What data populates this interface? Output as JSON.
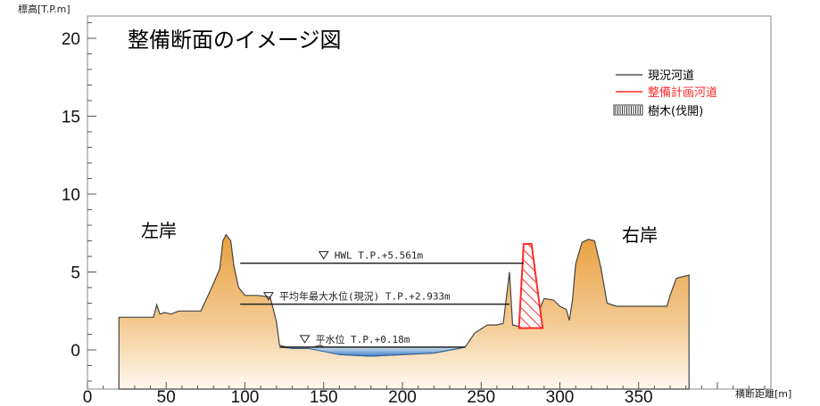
{
  "title": "整備断面のイメージ図",
  "y_axis_label": "標高[T.P.m]",
  "x_axis_label": "横断距離[m]",
  "x_ticks": [
    "0",
    "50",
    "100",
    "150",
    "200",
    "250",
    "300",
    "350"
  ],
  "y_ticks": [
    "0",
    "5",
    "10",
    "15",
    "20"
  ],
  "left_bank_label": "左岸",
  "right_bank_label": "右岸",
  "legend": {
    "existing": "現況河道",
    "planned": "整備計画河道",
    "trees": "樹木(伐開)"
  },
  "water_levels": [
    {
      "label": "HWL  T.P.+5.561m",
      "elevation": 5.561,
      "x_from": 97,
      "x_to": 277
    },
    {
      "label": "平均年最大水位(現況) T.P.+2.933m",
      "elevation": 2.933,
      "x_from": 97,
      "x_to": 268
    },
    {
      "label": "平水位  T.P.+0.18m",
      "elevation": 0.18,
      "x_from": 122,
      "x_to": 240
    }
  ],
  "colors": {
    "existing": "#555555",
    "planned": "#ff2a2a",
    "terrain_top": "#e8a040",
    "terrain_bottom": "#fff4e6",
    "water": "#5b9bd5"
  },
  "chart_data": {
    "type": "area",
    "xlim": [
      0,
      430
    ],
    "ylim": [
      -2,
      21
    ],
    "xlabel": "横断距離[m]",
    "ylabel": "標高[T.P.m]",
    "ground_profile": [
      [
        20,
        2.1
      ],
      [
        42,
        2.1
      ],
      [
        44,
        2.9
      ],
      [
        46,
        2.3
      ],
      [
        49,
        2.4
      ],
      [
        53,
        2.3
      ],
      [
        58,
        2.5
      ],
      [
        72,
        2.5
      ],
      [
        78,
        3.8
      ],
      [
        84,
        5.2
      ],
      [
        86,
        7.0
      ],
      [
        88,
        7.4
      ],
      [
        91,
        7.0
      ],
      [
        93,
        5.4
      ],
      [
        96,
        4.0
      ],
      [
        100,
        3.5
      ],
      [
        108,
        3.5
      ],
      [
        116,
        3.4
      ],
      [
        118,
        2.6
      ],
      [
        120,
        1.8
      ],
      [
        122,
        0.3
      ],
      [
        130,
        0.1
      ],
      [
        140,
        0.1
      ],
      [
        148,
        0.3
      ],
      [
        160,
        -0.3
      ],
      [
        180,
        -0.4
      ],
      [
        200,
        -0.3
      ],
      [
        220,
        -0.2
      ],
      [
        236,
        0.1
      ],
      [
        240,
        0.2
      ],
      [
        246,
        1.1
      ],
      [
        254,
        1.6
      ],
      [
        260,
        1.6
      ],
      [
        264,
        1.7
      ],
      [
        268,
        5.0
      ],
      [
        270,
        1.6
      ],
      [
        278,
        1.4
      ],
      [
        283,
        1.6
      ],
      [
        290,
        3.3
      ],
      [
        296,
        3.2
      ],
      [
        300,
        2.8
      ],
      [
        304,
        2.6
      ],
      [
        306,
        1.9
      ],
      [
        308,
        3.2
      ],
      [
        310,
        5.5
      ],
      [
        314,
        6.9
      ],
      [
        318,
        7.1
      ],
      [
        322,
        7.0
      ],
      [
        326,
        5.3
      ],
      [
        330,
        3.0
      ],
      [
        336,
        2.8
      ],
      [
        350,
        2.8
      ],
      [
        368,
        2.8
      ],
      [
        370,
        3.5
      ],
      [
        374,
        4.6
      ],
      [
        382,
        4.8
      ],
      [
        382,
        -2
      ]
    ],
    "water_surface": [
      [
        122,
        0.18
      ],
      [
        240,
        0.18
      ]
    ],
    "planned_section": [
      [
        277,
        6.8
      ],
      [
        282,
        6.8
      ],
      [
        289,
        1.4
      ],
      [
        274,
        1.4
      ]
    ],
    "series": [
      {
        "name": "現況河道",
        "values": []
      },
      {
        "name": "整備計画河道",
        "values": []
      }
    ]
  }
}
